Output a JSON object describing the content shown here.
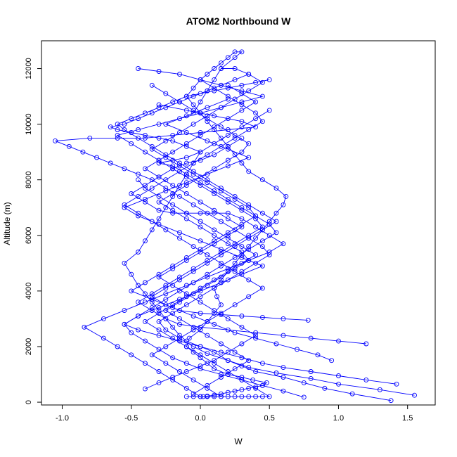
{
  "chart_data": {
    "type": "scatter",
    "title": "ATOM2 Northbound W",
    "xlabel": "W",
    "ylabel": "Altitude (m)",
    "xlim": [
      -1.15,
      1.7
    ],
    "ylim": [
      -100,
      13000
    ],
    "xticks": [
      -1.0,
      -0.5,
      0.0,
      0.5,
      1.0,
      1.5
    ],
    "xtick_labels": [
      "-1.0",
      "-0.5",
      "0.0",
      "0.5",
      "1.0",
      "1.5"
    ],
    "yticks": [
      0,
      2000,
      4000,
      6000,
      8000,
      10000,
      12000
    ],
    "ytick_labels": [
      "0",
      "2000",
      "4000",
      "6000",
      "8000",
      "10000",
      "12000"
    ],
    "grid": false,
    "point_style": "open-circle",
    "connected": true,
    "color": "#0000ff",
    "series": [
      {
        "x": [
          0.02,
          0.05,
          0.1,
          0.15,
          0.2,
          0.25,
          0.3,
          0.35,
          0.4,
          0.45,
          0.48,
          0.38,
          0.3,
          0.2,
          0.1,
          0.05,
          0.0,
          -0.05,
          -0.1,
          -0.08,
          0.0,
          0.05,
          0.1,
          0.15,
          0.12,
          0.1,
          0.15,
          0.2,
          0.25,
          0.3,
          0.35,
          0.4,
          0.45,
          0.5,
          0.55,
          0.6,
          0.62,
          0.55,
          0.45,
          0.35,
          0.3,
          0.25,
          0.2,
          0.15,
          0.1,
          0.05,
          0.0,
          -0.05,
          -0.1,
          -0.05,
          0.0,
          0.05,
          0.1,
          0.15,
          0.2,
          0.25,
          0.3,
          0.25,
          0.15,
          0.1,
          0.05,
          0.0,
          -0.05
        ],
        "y": [
          200,
          220,
          250,
          300,
          350,
          400,
          450,
          500,
          550,
          600,
          700,
          800,
          900,
          1000,
          1200,
          1400,
          1600,
          1800,
          2000,
          2300,
          2600,
          2900,
          3200,
          3500,
          3800,
          4100,
          4400,
          4700,
          5000,
          5300,
          5600,
          5900,
          6200,
          6500,
          6800,
          7100,
          7400,
          7700,
          8000,
          8300,
          8600,
          8900,
          9200,
          9500,
          9800,
          10100,
          10400,
          10700,
          11000,
          11300,
          11600,
          11800,
          12000,
          12200,
          12400,
          12600,
          12600,
          12400,
          12000,
          11600,
          11200,
          10800,
          10400
        ]
      },
      {
        "x": [
          1.38,
          1.1,
          0.9,
          0.75,
          0.6,
          0.4,
          0.3,
          0.2,
          0.1,
          0.0,
          -0.1,
          -0.15,
          -0.2,
          -0.25,
          -0.3,
          -0.35,
          -0.4,
          -0.45,
          -0.5,
          -0.55,
          -0.45,
          -0.4,
          -0.35,
          -0.3,
          -0.25,
          -0.2,
          -0.15,
          -0.1,
          -0.05,
          0.0,
          -0.1,
          -0.2,
          -0.3,
          -0.4,
          -0.5,
          -0.6,
          -0.65,
          -0.55,
          -0.45,
          -0.35,
          -0.25,
          -0.15,
          -0.05,
          0.05,
          0.15,
          0.25,
          0.35
        ],
        "y": [
          60,
          300,
          500,
          700,
          900,
          1100,
          1300,
          1500,
          1800,
          2000,
          2200,
          2400,
          2700,
          3000,
          3300,
          3600,
          3900,
          4200,
          4600,
          5000,
          5400,
          5800,
          6200,
          6600,
          7000,
          7400,
          7800,
          8200,
          8600,
          9000,
          9200,
          9400,
          9500,
          9600,
          9700,
          9800,
          9900,
          10000,
          10200,
          10400,
          10600,
          10800,
          11000,
          11200,
          11400,
          11600,
          11800
        ]
      },
      {
        "x": [
          1.55,
          1.3,
          1.0,
          0.8,
          0.55,
          0.35,
          0.2,
          0.05,
          -0.05,
          -0.15,
          -0.25,
          -0.3,
          -0.2,
          -0.1,
          0.0,
          0.1,
          0.2,
          0.3,
          0.4,
          0.5,
          0.45,
          0.35,
          0.25,
          0.15,
          0.05,
          -0.05,
          -0.15,
          -0.25,
          -0.35,
          -0.45,
          -0.55,
          -0.65,
          -0.75,
          -0.85,
          -0.95,
          -1.05,
          -0.8,
          -0.6,
          -0.4,
          -0.2,
          0.0,
          0.2,
          0.4,
          0.3,
          0.1,
          -0.1,
          -0.3
        ],
        "y": [
          250,
          450,
          650,
          850,
          1050,
          1250,
          1500,
          1750,
          2000,
          2300,
          2600,
          2900,
          3200,
          3500,
          3800,
          4100,
          4400,
          4700,
          5000,
          5300,
          5600,
          5900,
          6200,
          6500,
          6800,
          7100,
          7400,
          7700,
          8000,
          8200,
          8400,
          8600,
          8800,
          9000,
          9200,
          9400,
          9500,
          9500,
          9500,
          9600,
          9700,
          9800,
          9900,
          10100,
          10300,
          10500,
          10700
        ]
      },
      {
        "x": [
          0.75,
          0.6,
          0.45,
          0.3,
          0.15,
          0.0,
          -0.1,
          -0.2,
          -0.3,
          -0.4,
          -0.5,
          -0.55,
          -0.45,
          -0.35,
          -0.25,
          -0.15,
          -0.05,
          0.05,
          0.15,
          0.25,
          0.35,
          0.45,
          0.55,
          0.5,
          0.4,
          0.3,
          0.2,
          0.1,
          0.0,
          -0.1,
          -0.2,
          -0.3,
          -0.2,
          -0.1,
          0.0,
          0.1,
          0.2,
          0.3,
          0.4,
          0.5
        ],
        "y": [
          180,
          400,
          600,
          800,
          1000,
          1200,
          1400,
          1600,
          1900,
          2200,
          2500,
          2800,
          3100,
          3400,
          3700,
          4000,
          4300,
          4600,
          4900,
          5200,
          5500,
          5800,
          6100,
          6400,
          6700,
          7000,
          7300,
          7600,
          7900,
          8200,
          8500,
          8600,
          8700,
          8800,
          9000,
          9300,
          9600,
          9900,
          10200,
          10500
        ]
      },
      {
        "x": [
          0.0,
          -0.1,
          -0.2,
          -0.3,
          -0.4,
          -0.5,
          -0.6,
          -0.7,
          -0.84,
          -0.7,
          -0.55,
          -0.4,
          -0.25,
          -0.1,
          0.05,
          0.2,
          0.35,
          0.5,
          0.6,
          0.5,
          0.4,
          0.3,
          0.2,
          0.1,
          0.0,
          -0.1,
          -0.2,
          -0.3,
          -0.4,
          -0.5,
          -0.4,
          -0.3,
          -0.2,
          -0.1,
          0.0,
          0.1,
          0.2,
          0.3
        ],
        "y": [
          200,
          500,
          800,
          1100,
          1400,
          1700,
          2000,
          2300,
          2700,
          3000,
          3300,
          3600,
          3900,
          4200,
          4500,
          4800,
          5100,
          5400,
          5700,
          6000,
          6300,
          6600,
          6800,
          6800,
          6800,
          6800,
          6800,
          6900,
          7200,
          7500,
          7800,
          8100,
          8400,
          8600,
          8700,
          8900,
          9200,
          9500
        ]
      },
      {
        "x": [
          -0.1,
          -0.05,
          0.0,
          0.05,
          0.1,
          0.15,
          0.2,
          0.25,
          0.3,
          0.35,
          0.4,
          0.45,
          0.5,
          0.4,
          0.3,
          0.2,
          0.1,
          0.0,
          -0.1,
          -0.2,
          -0.3,
          -0.4,
          -0.3,
          -0.2,
          -0.1,
          0.0,
          0.1,
          0.2,
          0.3,
          0.4,
          0.3,
          0.2,
          0.1,
          0.0,
          -0.1,
          -0.2,
          -0.3,
          -0.4,
          -0.45
        ],
        "y": [
          200,
          200,
          200,
          200,
          200,
          200,
          200,
          200,
          200,
          200,
          200,
          200,
          200,
          500,
          800,
          1100,
          1400,
          1700,
          2000,
          2300,
          2600,
          2900,
          3200,
          3500,
          3800,
          4100,
          4400,
          4700,
          5000,
          5300,
          5600,
          5900,
          6200,
          6500,
          6800,
          7100,
          7400,
          7700,
          8000
        ]
      },
      {
        "x": [
          0.95,
          0.85,
          0.7,
          0.55,
          0.4,
          0.25,
          0.1,
          -0.05,
          -0.2,
          -0.35,
          -0.5,
          -0.4,
          -0.3,
          -0.2,
          -0.1,
          0.0,
          0.1,
          0.2,
          0.3,
          0.4,
          0.35,
          0.25,
          0.15,
          0.05,
          -0.05,
          -0.15,
          -0.25,
          -0.35,
          -0.25,
          -0.15,
          -0.05,
          0.05,
          0.15,
          0.25,
          0.35,
          0.45,
          0.35,
          0.25,
          0.15
        ],
        "y": [
          1500,
          1700,
          1900,
          2100,
          2300,
          2500,
          2800,
          3100,
          3400,
          3700,
          4000,
          4300,
          4600,
          4900,
          5200,
          5500,
          5800,
          6100,
          6400,
          6700,
          7000,
          7300,
          7600,
          7900,
          8200,
          8500,
          8800,
          9100,
          9400,
          9700,
          10000,
          10300,
          10600,
          10900,
          11200,
          11500,
          11800,
          12000,
          12000
        ]
      },
      {
        "x": [
          1.2,
          1.0,
          0.8,
          0.6,
          0.4,
          0.2,
          0.0,
          -0.15,
          -0.25,
          -0.35,
          -0.45,
          -0.35,
          -0.25,
          -0.15,
          -0.05,
          0.05,
          0.15,
          0.25,
          0.35,
          0.45,
          0.4,
          0.3,
          0.2,
          0.1,
          0.0,
          -0.1,
          -0.2,
          -0.3,
          -0.4,
          -0.5,
          -0.6,
          -0.45,
          -0.3,
          -0.15,
          0.0,
          0.15,
          0.3,
          0.45,
          0.3,
          0.15,
          0.0,
          -0.15,
          -0.3,
          -0.45
        ],
        "y": [
          2100,
          2200,
          2300,
          2400,
          2500,
          2600,
          2700,
          2800,
          3000,
          3300,
          3600,
          3900,
          4200,
          4500,
          4800,
          5100,
          5400,
          5700,
          6000,
          6300,
          6600,
          6900,
          7200,
          7500,
          7800,
          8100,
          8400,
          8700,
          9000,
          9300,
          9600,
          9800,
          10000,
          10200,
          10400,
          10600,
          10800,
          11000,
          11200,
          11400,
          11600,
          11800,
          11900,
          12000
        ]
      },
      {
        "x": [
          0.78,
          0.6,
          0.45,
          0.3,
          0.15,
          0.0,
          -0.15,
          -0.25,
          -0.35,
          -0.25,
          -0.15,
          -0.05,
          0.05,
          0.15,
          0.25,
          0.35,
          0.45,
          0.55,
          0.45,
          0.35,
          0.25,
          0.15,
          0.05,
          -0.05,
          -0.15,
          -0.25,
          -0.35,
          -0.45,
          -0.55,
          -0.6,
          -0.5,
          -0.4,
          -0.3,
          -0.2,
          -0.1,
          0.0,
          0.1,
          0.2,
          0.3,
          0.4,
          0.5
        ],
        "y": [
          2950,
          3000,
          3050,
          3100,
          3150,
          3200,
          3300,
          3500,
          3800,
          4100,
          4400,
          4700,
          5000,
          5300,
          5600,
          5900,
          6200,
          6500,
          6800,
          7100,
          7400,
          7700,
          8000,
          8300,
          8600,
          8900,
          9200,
          9500,
          9800,
          10000,
          10200,
          10400,
          10600,
          10800,
          11000,
          11100,
          11200,
          11300,
          11400,
          11500,
          11600
        ]
      },
      {
        "x": [
          1.42,
          1.2,
          1.0,
          0.8,
          0.6,
          0.45,
          0.3,
          0.15,
          0.0,
          -0.15,
          -0.3,
          -0.45,
          -0.55,
          -0.45,
          -0.3,
          -0.15,
          0.0,
          0.15,
          0.3,
          0.45,
          0.3,
          0.15,
          0.0,
          -0.15,
          -0.3,
          -0.45,
          -0.55,
          -0.4,
          -0.25,
          -0.1,
          0.05,
          0.2,
          0.35,
          0.2,
          0.05,
          -0.1,
          -0.25,
          -0.1,
          0.05,
          0.2
        ],
        "y": [
          650,
          800,
          950,
          1100,
          1250,
          1400,
          1600,
          1800,
          2000,
          2200,
          2400,
          2600,
          2800,
          3100,
          3400,
          3700,
          4000,
          4300,
          4600,
          4900,
          5200,
          5500,
          5800,
          6100,
          6400,
          6700,
          7000,
          7300,
          7600,
          7900,
          8200,
          8500,
          8800,
          9100,
          9400,
          9700,
          10000,
          10300,
          10600,
          10900
        ]
      },
      {
        "x": [
          -0.4,
          -0.3,
          -0.2,
          -0.1,
          0.0,
          0.1,
          0.2,
          0.3,
          0.4,
          0.3,
          0.2,
          0.1,
          0.0,
          -0.1,
          -0.2,
          -0.3,
          -0.2,
          -0.1,
          0.0,
          0.1,
          0.2,
          0.3,
          0.2,
          0.1,
          0.0,
          -0.1,
          -0.2,
          -0.3,
          -0.4,
          -0.3,
          -0.2,
          -0.1,
          0.0,
          0.1,
          0.2,
          0.3,
          0.4,
          0.3,
          0.2
        ],
        "y": [
          480,
          700,
          900,
          1100,
          1300,
          1500,
          1800,
          2100,
          2400,
          2700,
          3000,
          3300,
          3600,
          3900,
          4200,
          4500,
          4800,
          5100,
          5400,
          5700,
          6000,
          6300,
          6600,
          6900,
          7200,
          7500,
          7800,
          8100,
          8400,
          8700,
          9000,
          9300,
          9600,
          9900,
          10200,
          10500,
          10800,
          11100,
          11400
        ]
      },
      {
        "x": [
          0.15,
          0.05,
          -0.05,
          -0.15,
          -0.25,
          -0.35,
          -0.25,
          -0.15,
          -0.05,
          0.05,
          0.15,
          0.25,
          0.35,
          0.45,
          0.35,
          0.25,
          0.15,
          0.05,
          -0.05,
          -0.15,
          -0.25,
          -0.35,
          -0.45,
          -0.55,
          -0.45,
          -0.35,
          -0.25,
          -0.15,
          -0.05,
          0.05,
          0.15,
          0.25,
          0.35,
          0.45,
          0.4,
          0.3,
          0.2,
          0.1,
          0.0
        ],
        "y": [
          200,
          500,
          800,
          1100,
          1400,
          1700,
          2000,
          2300,
          2600,
          2900,
          3200,
          3500,
          3800,
          4100,
          4400,
          4700,
          5000,
          5300,
          5600,
          5900,
          6200,
          6500,
          6800,
          7100,
          7400,
          7700,
          8000,
          8300,
          8600,
          8900,
          9200,
          9500,
          9800,
          10100,
          10400,
          10700,
          11000,
          11300,
          11600
        ]
      },
      {
        "x": [
          -0.05,
          0.05,
          0.15,
          0.25,
          0.35,
          0.25,
          0.15,
          0.05,
          -0.05,
          -0.15,
          -0.25,
          -0.15,
          -0.05,
          0.05,
          0.15,
          0.25,
          0.35,
          0.3,
          0.2,
          0.1,
          0.0,
          -0.1,
          -0.2,
          -0.3,
          -0.2,
          -0.1,
          0.0,
          0.1,
          0.2,
          0.3,
          0.35,
          0.25,
          0.15,
          0.05,
          -0.05,
          -0.15,
          -0.25,
          -0.35
        ],
        "y": [
          300,
          600,
          900,
          1200,
          1500,
          1800,
          2100,
          2400,
          2700,
          3000,
          3300,
          3600,
          3900,
          4200,
          4500,
          4800,
          5100,
          5400,
          5700,
          6000,
          6300,
          6600,
          6900,
          7200,
          7500,
          7800,
          8100,
          8400,
          8700,
          9000,
          9300,
          9600,
          9900,
          10200,
          10500,
          10800,
          11100,
          11400
        ]
      }
    ]
  }
}
